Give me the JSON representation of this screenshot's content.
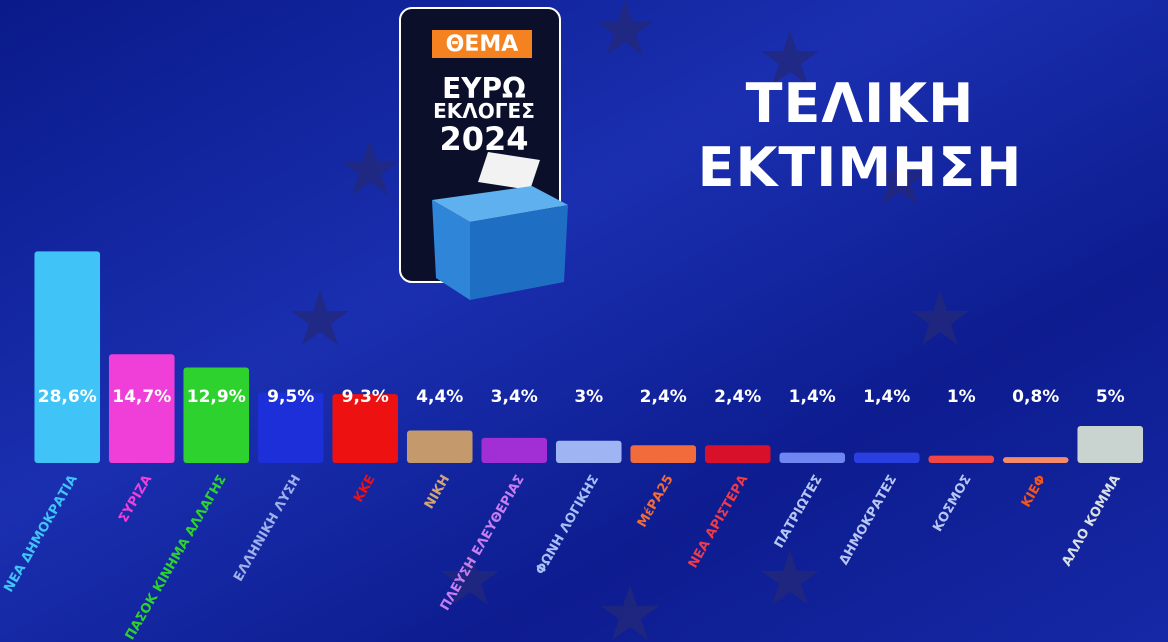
{
  "logo": {
    "brand": "ΘΕΜΑ",
    "line1": "ΕΥΡΩ",
    "line2": "ΕΚΛΟΓΕΣ",
    "year": "2024"
  },
  "chart_data": {
    "type": "bar",
    "title": "ΤΕΛΙΚΗ ΕΚΤΙΜΗΣΗ",
    "categories": [
      "ΝΕΑ ΔΗΜΟΚΡΑΤΙΑ",
      "ΣΥΡΙΖΑ",
      "ΠΑΣΟΚ ΚΙΝΗΜΑ ΑΛΛΑΓΗΣ",
      "ΕΛΛΗΝΙΚΗ ΛΥΣΗ",
      "ΚΚΕ",
      "ΝΙΚΗ",
      "ΠΛΕΥΣΗ ΕΛΕΥΘΕΡΙΑΣ",
      "ΦΩΝΗ ΛΟΓΙΚΗΣ",
      "ΜέΡΑ25",
      "ΝΕΑ ΑΡΙΣΤΕΡΑ",
      "ΠΑΤΡΙΩΤΕΣ",
      "ΔΗΜΟΚΡΑΤΕΣ",
      "ΚΟΣΜΟΣ",
      "ΚΙΕΦ",
      "ΑΛΛΟ ΚΟΜΜΑ"
    ],
    "values": [
      28.6,
      14.7,
      12.9,
      9.5,
      9.3,
      4.4,
      3.4,
      3,
      2.4,
      2.4,
      1.4,
      1.4,
      1,
      0.8,
      5
    ],
    "value_labels": [
      "28,6%",
      "14,7%",
      "12,9%",
      "9,5%",
      "9,3%",
      "4,4%",
      "3,4%",
      "3%",
      "2,4%",
      "2,4%",
      "1,4%",
      "1,4%",
      "1%",
      "0,8%",
      "5%"
    ],
    "colors": [
      "#40c4f7",
      "#f03ed8",
      "#2ed22e",
      "#1c2fd8",
      "#ee1111",
      "#c49a6c",
      "#a22fd6",
      "#9fb4f2",
      "#f26b3a",
      "#d8102a",
      "#6f86f2",
      "#2a3fe0",
      "#f04646",
      "#f48a6a",
      "#c9d3d0"
    ],
    "label_colors": [
      "#40c4f7",
      "#f03ed8",
      "#2ed22e",
      "#9fb0ea",
      "#ee1111",
      "#d4a574",
      "#c67ef0",
      "#a9c0f6",
      "#f26b3a",
      "#ef3a4a",
      "#b7c6f4",
      "#b7c6f4",
      "#b7c6f4",
      "#f2561d",
      "#d9e2e0"
    ]
  }
}
